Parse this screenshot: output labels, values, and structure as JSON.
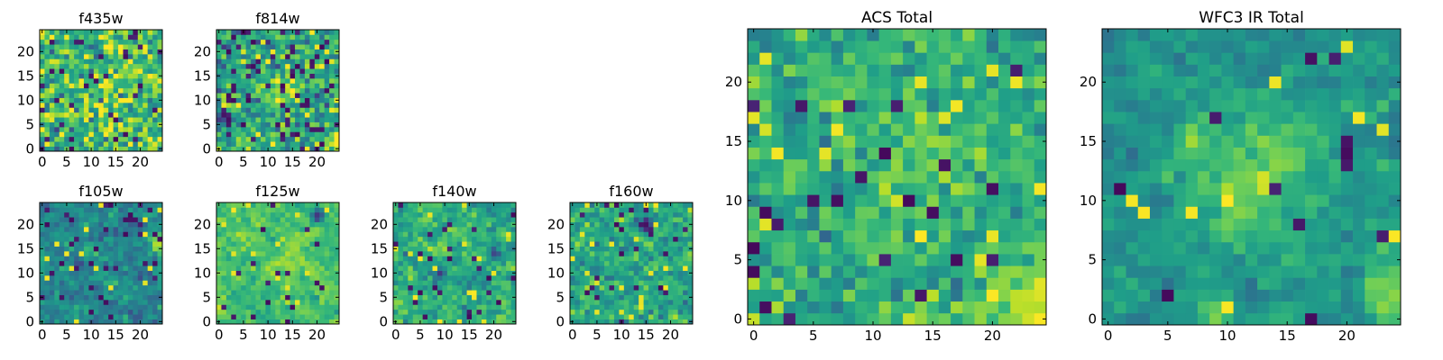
{
  "figure": {
    "description_colormap": "viridis",
    "colors": {
      "low": "#440154",
      "mid": "#21918c",
      "high": "#fde725",
      "frame": "#000000"
    }
  },
  "chart_data": [
    {
      "id": "f435w",
      "type": "heatmap",
      "title": "f435w",
      "grid": [
        25,
        25
      ],
      "xlim": [
        -0.5,
        24.5
      ],
      "ylim": [
        -0.5,
        24.5
      ],
      "xticks": [
        0,
        5,
        10,
        15,
        20
      ],
      "yticks": [
        0,
        5,
        10,
        15,
        20
      ],
      "xtick_labels": [
        "0",
        "5",
        "10",
        "15",
        "20"
      ],
      "ytick_labels": [
        "0",
        "5",
        "10",
        "15",
        "20"
      ],
      "value_range": [
        0,
        1
      ],
      "texture": {
        "seed": 11,
        "smooth": 0.05,
        "outlier_low": 0.06,
        "outlier_high": 0.04,
        "base": 0.66,
        "spread": 0.17,
        "features": [
          {
            "x": 16,
            "y": 13,
            "sigma": 4,
            "amp": 0.08
          }
        ]
      }
    },
    {
      "id": "f814w",
      "type": "heatmap",
      "title": "f814w",
      "grid": [
        25,
        25
      ],
      "xlim": [
        -0.5,
        24.5
      ],
      "ylim": [
        -0.5,
        24.5
      ],
      "xticks": [
        0,
        5,
        10,
        15,
        20
      ],
      "yticks": [
        0,
        5,
        10,
        15,
        20
      ],
      "xtick_labels": [
        "0",
        "5",
        "10",
        "15",
        "20"
      ],
      "ytick_labels": [
        "0",
        "5",
        "10",
        "15",
        "20"
      ],
      "value_range": [
        0,
        1
      ],
      "texture": {
        "seed": 23,
        "smooth": 0.05,
        "outlier_low": 0.06,
        "outlier_high": 0.03,
        "base": 0.58,
        "spread": 0.16,
        "features": [
          {
            "x": 14,
            "y": 12,
            "sigma": 2.5,
            "amp": 0.22
          },
          {
            "x": 24,
            "y": 2,
            "sigma": 2,
            "amp": 0.4
          }
        ]
      }
    },
    {
      "id": "f105w",
      "type": "heatmap",
      "title": "f105w",
      "grid": [
        25,
        25
      ],
      "xlim": [
        -0.5,
        24.5
      ],
      "ylim": [
        -0.5,
        24.5
      ],
      "xticks": [
        0,
        5,
        10,
        15,
        20
      ],
      "yticks": [
        0,
        5,
        10,
        15,
        20
      ],
      "xtick_labels": [
        "0",
        "5",
        "10",
        "15",
        "20"
      ],
      "ytick_labels": [
        "0",
        "5",
        "10",
        "15",
        "20"
      ],
      "value_range": [
        0,
        1
      ],
      "texture": {
        "seed": 37,
        "smooth": 0.35,
        "outlier_low": 0.05,
        "outlier_high": 0.02,
        "base": 0.47,
        "spread": 0.11,
        "features": [
          {
            "x": 24,
            "y": 16,
            "sigma": 1.5,
            "amp": 0.4
          }
        ]
      }
    },
    {
      "id": "f125w",
      "type": "heatmap",
      "title": "f125w",
      "grid": [
        25,
        25
      ],
      "xlim": [
        -0.5,
        24.5
      ],
      "ylim": [
        -0.5,
        24.5
      ],
      "xticks": [
        0,
        5,
        10,
        15,
        20
      ],
      "yticks": [
        0,
        5,
        10,
        15,
        20
      ],
      "xtick_labels": [
        "0",
        "5",
        "10",
        "15",
        "20"
      ],
      "ytick_labels": [
        "0",
        "5",
        "10",
        "15",
        "20"
      ],
      "value_range": [
        0,
        1
      ],
      "texture": {
        "seed": 41,
        "smooth": 0.45,
        "outlier_low": 0.02,
        "outlier_high": 0.03,
        "base": 0.7,
        "spread": 0.1,
        "features": [
          {
            "x": 15,
            "y": 13,
            "sigma": 4,
            "amp": 0.1
          },
          {
            "x": 20,
            "y": 22,
            "sigma": 1,
            "amp": -0.6
          }
        ]
      }
    },
    {
      "id": "f140w",
      "type": "heatmap",
      "title": "f140w",
      "grid": [
        25,
        25
      ],
      "xlim": [
        -0.5,
        24.5
      ],
      "ylim": [
        -0.5,
        24.5
      ],
      "xticks": [
        0,
        5,
        10,
        15,
        20
      ],
      "yticks": [
        0,
        5,
        10,
        15,
        20
      ],
      "xtick_labels": [
        "0",
        "5",
        "10",
        "15",
        "20"
      ],
      "ytick_labels": [
        "0",
        "5",
        "10",
        "15",
        "20"
      ],
      "value_range": [
        0,
        1
      ],
      "texture": {
        "seed": 53,
        "smooth": 0.35,
        "outlier_low": 0.04,
        "outlier_high": 0.03,
        "base": 0.62,
        "spread": 0.12,
        "features": [
          {
            "x": 20,
            "y": 14,
            "sigma": 1,
            "amp": -0.5
          },
          {
            "x": 9,
            "y": 10,
            "sigma": 1,
            "amp": -0.4
          }
        ]
      }
    },
    {
      "id": "f160w",
      "type": "heatmap",
      "title": "f160w",
      "grid": [
        25,
        25
      ],
      "xlim": [
        -0.5,
        24.5
      ],
      "ylim": [
        -0.5,
        24.5
      ],
      "xticks": [
        0,
        5,
        10,
        15,
        20
      ],
      "yticks": [
        0,
        5,
        10,
        15,
        20
      ],
      "xtick_labels": [
        "0",
        "5",
        "10",
        "15",
        "20"
      ],
      "ytick_labels": [
        "0",
        "5",
        "10",
        "15",
        "20"
      ],
      "value_range": [
        0,
        1
      ],
      "texture": {
        "seed": 67,
        "smooth": 0.3,
        "outlier_low": 0.05,
        "outlier_high": 0.03,
        "base": 0.6,
        "spread": 0.13,
        "features": [
          {
            "x": 15,
            "y": 20,
            "sigma": 1,
            "amp": -0.5
          }
        ]
      }
    },
    {
      "id": "acs_total",
      "type": "heatmap",
      "title": "ACS Total",
      "grid": [
        25,
        25
      ],
      "xlim": [
        -0.5,
        24.5
      ],
      "ylim": [
        -0.5,
        24.5
      ],
      "xticks": [
        0,
        5,
        10,
        15,
        20
      ],
      "yticks": [
        0,
        5,
        10,
        15,
        20
      ],
      "xtick_labels": [
        "0",
        "5",
        "10",
        "15",
        "20"
      ],
      "ytick_labels": [
        "0",
        "5",
        "10",
        "15",
        "20"
      ],
      "value_range": [
        0,
        1
      ],
      "texture": {
        "seed": 79,
        "smooth": 0.12,
        "outlier_low": 0.045,
        "outlier_high": 0.03,
        "base": 0.62,
        "spread": 0.12,
        "features": [
          {
            "x": 13,
            "y": 13,
            "sigma": 3,
            "amp": 0.15
          },
          {
            "x": 23,
            "y": 2,
            "sigma": 2.5,
            "amp": 0.3
          }
        ]
      }
    },
    {
      "id": "wfc3_ir_total",
      "type": "heatmap",
      "title": "WFC3 IR Total",
      "grid": [
        25,
        25
      ],
      "xlim": [
        -0.5,
        24.5
      ],
      "ylim": [
        -0.5,
        24.5
      ],
      "xticks": [
        0,
        5,
        10,
        15,
        20
      ],
      "yticks": [
        0,
        5,
        10,
        15,
        20
      ],
      "xtick_labels": [
        "0",
        "5",
        "10",
        "15",
        "20"
      ],
      "ytick_labels": [
        "0",
        "5",
        "10",
        "15",
        "20"
      ],
      "value_range": [
        0,
        1
      ],
      "texture": {
        "seed": 97,
        "smooth": 0.45,
        "outlier_low": 0.025,
        "outlier_high": 0.015,
        "base": 0.5,
        "spread": 0.1,
        "features": [
          {
            "x": 12,
            "y": 12,
            "sigma": 4,
            "amp": 0.32
          },
          {
            "x": 24,
            "y": 2,
            "sigma": 2,
            "amp": 0.35
          },
          {
            "x": 9,
            "y": 0,
            "sigma": 1,
            "amp": 0.3
          }
        ]
      }
    }
  ]
}
